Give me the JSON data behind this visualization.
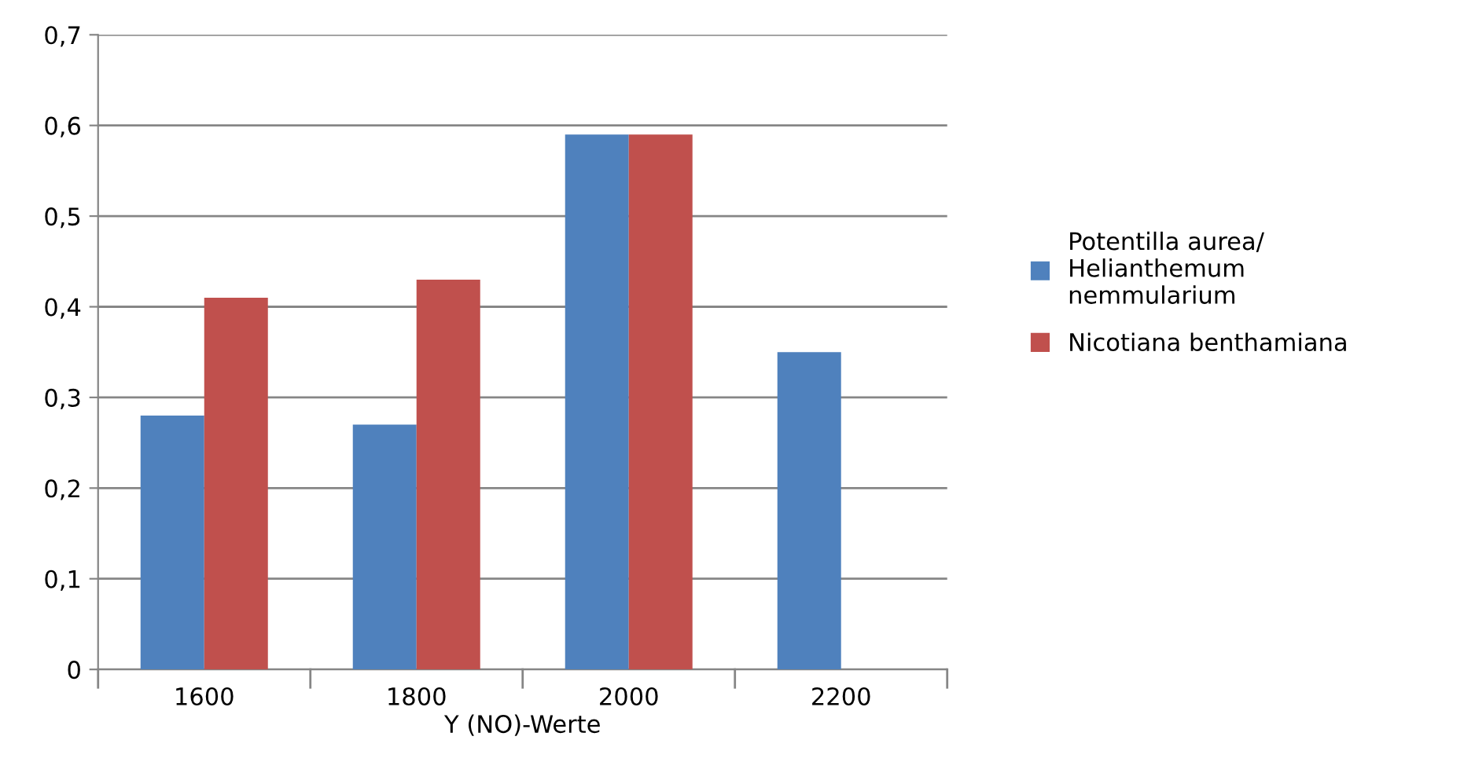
{
  "chart_data": {
    "type": "bar",
    "xlabel": "Y (NO)-Werte",
    "categories": [
      "1600",
      "1800",
      "2000",
      "2200"
    ],
    "series": [
      {
        "name": "Potentilla aurea/\nHelianthemum\nnemmularium",
        "color": "#4f81bd",
        "values": [
          0.28,
          0.27,
          0.59,
          0.35
        ]
      },
      {
        "name": "Nicotiana benthamiana",
        "color": "#c0504d",
        "values": [
          0.41,
          0.43,
          0.59,
          null
        ]
      }
    ],
    "ylim": [
      0,
      0.7
    ],
    "yticks": [
      0,
      {
        "value": 0.1,
        "label": "0,1"
      },
      {
        "value": 0.2,
        "label": "0,2"
      },
      {
        "value": 0.3,
        "label": "0,3"
      },
      {
        "value": 0.4,
        "label": "0,4"
      },
      {
        "value": 0.5,
        "label": "0,5"
      },
      {
        "value": 0.6,
        "label": "0,6"
      },
      {
        "value": 0.7,
        "label": "0,7"
      }
    ],
    "grid": "y",
    "legend": "right"
  }
}
